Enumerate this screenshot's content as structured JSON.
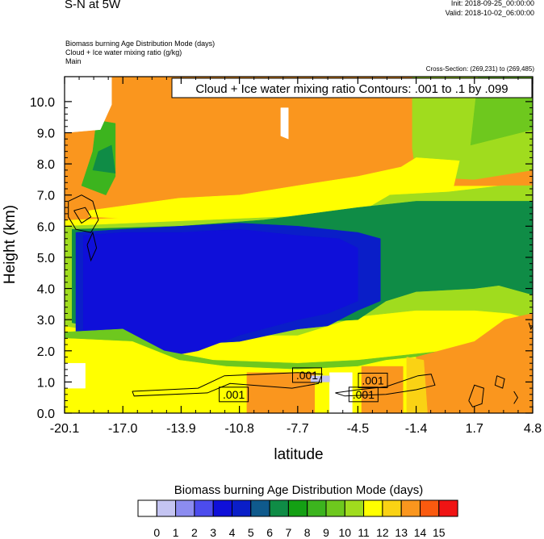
{
  "header": {
    "title": "S-N at 5W",
    "init": "Init: 2018-09-25_00:00:00",
    "valid": "Valid: 2018-10-02_06:00:00",
    "fields": [
      "Biomass burning Age Distribution Mode   (days)",
      "Cloud + Ice water mixing ratio   (g/kg)",
      "Main"
    ],
    "cross_section": "Cross-Section: (269,231) to (269,485)"
  },
  "chart_data": {
    "type": "heatmap",
    "xlabel": "latitude",
    "ylabel": "Height (km)",
    "x_ticks": [
      -20.1,
      -17.0,
      -13.9,
      -10.8,
      -7.7,
      -4.5,
      -1.4,
      1.7,
      4.8
    ],
    "x_tick_labels": [
      "-20.1",
      "-17.0",
      "-13.9",
      "-10.8",
      "-7.7",
      "-4.5",
      "-1.4",
      "1.7",
      "4.8"
    ],
    "xlim": [
      -20.1,
      4.8
    ],
    "y_ticks": [
      0,
      1,
      2,
      3,
      4,
      5,
      6,
      7,
      8,
      9,
      10
    ],
    "y_tick_labels": [
      "0.0",
      "1.0",
      "2.0",
      "3.0",
      "4.0",
      "5.0",
      "6.0",
      "7.0",
      "8.0",
      "9.0",
      "10.0"
    ],
    "ylim": [
      0,
      10.8
    ],
    "contour_info": "Cloud + Ice water mixing ratio Contours: .001 to .1 by .099",
    "contour_labels": [
      {
        "text": ".001",
        "lat": -7.2,
        "km": 1.22
      },
      {
        "text": ".001",
        "lat": -11.1,
        "km": 0.6
      },
      {
        "text": ".001",
        "lat": -4.2,
        "km": 0.6
      },
      {
        "text": ".001",
        "lat": -3.7,
        "km": 1.05
      }
    ],
    "colorbar": {
      "title": "Biomass burning Age Distribution Mode  (days)",
      "labels": [
        "0",
        "1",
        "2",
        "3",
        "4",
        "5",
        "6",
        "7",
        "8",
        "9",
        "10",
        "11",
        "12",
        "13",
        "14",
        "15"
      ],
      "colors": [
        "#ffffff",
        "#c4c4f2",
        "#8c8cf0",
        "#4c4ced",
        "#0f0fd9",
        "#0a1ec8",
        "#0f5a8c",
        "#0f8c46",
        "#14a014",
        "#3cb41e",
        "#6ec81e",
        "#a0dc1e",
        "#ffff00",
        "#fad214",
        "#fa961e",
        "#fa5a0f",
        "#f01414"
      ]
    },
    "regions": [
      {
        "level": 14,
        "poly": [
          [
            -20.1,
            6.2
          ],
          [
            -4.5,
            6.6
          ],
          [
            -1.4,
            6.9
          ],
          [
            0.5,
            7.3
          ],
          [
            4.8,
            7.3
          ],
          [
            4.8,
            10.8
          ],
          [
            -20.1,
            10.8
          ]
        ]
      },
      {
        "level": 11,
        "poly": [
          [
            -1.4,
            7.6
          ],
          [
            1.7,
            7.5
          ],
          [
            4.8,
            7.8
          ],
          [
            4.8,
            10.8
          ],
          [
            -1.6,
            10.8
          ],
          [
            -1.6,
            9.2
          ],
          [
            -1.6,
            8.5
          ]
        ]
      },
      {
        "level": 10,
        "poly": [
          [
            1.5,
            8.6
          ],
          [
            4.8,
            9.1
          ],
          [
            4.8,
            10.8
          ],
          [
            1.9,
            10.8
          ]
        ]
      },
      {
        "level": 12,
        "poly": [
          [
            -18.8,
            6.5
          ],
          [
            -14.0,
            6.9
          ],
          [
            -10.8,
            7.0
          ],
          [
            -7.7,
            7.3
          ],
          [
            -4.5,
            7.6
          ],
          [
            -2.2,
            7.9
          ],
          [
            -1.4,
            8.2
          ],
          [
            0.9,
            8.1
          ],
          [
            0.6,
            7.3
          ],
          [
            -1.4,
            6.9
          ],
          [
            -4.5,
            6.6
          ],
          [
            -7.7,
            6.3
          ],
          [
            -13.9,
            6.2
          ],
          [
            -18.8,
            6.3
          ]
        ]
      },
      {
        "level": 9,
        "poly": [
          [
            -19.2,
            7.3
          ],
          [
            -17.9,
            7.0
          ],
          [
            -17.4,
            7.6
          ],
          [
            -17.4,
            9.3
          ],
          [
            -18.4,
            9.4
          ],
          [
            -18.6,
            8.4
          ]
        ]
      },
      {
        "level": 7,
        "poly": [
          [
            -18.6,
            7.8
          ],
          [
            -17.4,
            7.7
          ],
          [
            -17.6,
            8.6
          ],
          [
            -18.3,
            8.4
          ]
        ]
      },
      {
        "level": 11,
        "poly": [
          [
            -20.1,
            6.0
          ],
          [
            -4.5,
            6.4
          ],
          [
            -2.8,
            7.0
          ],
          [
            0.3,
            7.1
          ],
          [
            3.2,
            7.3
          ],
          [
            4.8,
            7.3
          ],
          [
            4.8,
            3.0
          ],
          [
            3.6,
            3.2
          ],
          [
            1.7,
            3.3
          ],
          [
            -1.4,
            3.3
          ],
          [
            -4.5,
            3.1
          ],
          [
            -7.7,
            2.5
          ],
          [
            -10.8,
            2.5
          ],
          [
            -13.9,
            2.4
          ],
          [
            -17.0,
            2.5
          ],
          [
            -20.1,
            2.8
          ]
        ]
      },
      {
        "level": 7,
        "poly": [
          [
            -19.7,
            5.9
          ],
          [
            -13.9,
            6.0
          ],
          [
            -9.5,
            6.2
          ],
          [
            -4.5,
            6.6
          ],
          [
            -1.4,
            6.8
          ],
          [
            1.7,
            6.8
          ],
          [
            4.8,
            6.8
          ],
          [
            4.8,
            3.8
          ],
          [
            3.0,
            4.1
          ],
          [
            1.7,
            4.0
          ],
          [
            -1.4,
            3.9
          ],
          [
            -3.0,
            3.6
          ],
          [
            -4.5,
            3.0
          ],
          [
            -7.7,
            2.9
          ],
          [
            -10.8,
            2.6
          ],
          [
            -13.9,
            2.6
          ],
          [
            -17.0,
            2.6
          ],
          [
            -19.7,
            2.9
          ]
        ]
      },
      {
        "level": 5,
        "poly": [
          [
            -19.5,
            5.8
          ],
          [
            -17.0,
            5.9
          ],
          [
            -13.9,
            6.0
          ],
          [
            -10.8,
            6.1
          ],
          [
            -7.7,
            6.0
          ],
          [
            -4.5,
            5.8
          ],
          [
            -3.3,
            5.6
          ],
          [
            -3.3,
            3.6
          ],
          [
            -4.5,
            3.3
          ],
          [
            -6.1,
            2.8
          ],
          [
            -7.7,
            2.7
          ],
          [
            -10.8,
            2.3
          ],
          [
            -13.9,
            2.2
          ],
          [
            -17.0,
            2.4
          ],
          [
            -19.5,
            2.6
          ]
        ]
      },
      {
        "level": 4,
        "poly": [
          [
            -19.1,
            5.7
          ],
          [
            -17.0,
            5.8
          ],
          [
            -13.9,
            5.8
          ],
          [
            -10.8,
            5.9
          ],
          [
            -7.7,
            5.7
          ],
          [
            -5.5,
            5.6
          ],
          [
            -4.5,
            5.3
          ],
          [
            -4.5,
            3.6
          ],
          [
            -6.1,
            3.2
          ],
          [
            -7.7,
            3.0
          ],
          [
            -10.8,
            2.5
          ],
          [
            -13.0,
            2.0
          ],
          [
            -14.8,
            1.8
          ],
          [
            -17.0,
            2.4
          ],
          [
            -19.1,
            2.6
          ]
        ]
      },
      {
        "level": 10,
        "poly": [
          [
            -20.1,
            2.6
          ],
          [
            -17.0,
            2.7
          ],
          [
            -14.8,
            2.0
          ],
          [
            -12.2,
            1.7
          ],
          [
            -7.7,
            1.6
          ],
          [
            -4.5,
            1.7
          ],
          [
            -1.4,
            1.9
          ],
          [
            1.7,
            2.1
          ],
          [
            4.8,
            2.2
          ],
          [
            4.8,
            0
          ],
          [
            -20.1,
            0
          ]
        ]
      },
      {
        "level": 12,
        "poly": [
          [
            -20.1,
            2.4
          ],
          [
            -16.5,
            2.3
          ],
          [
            -14.0,
            1.7
          ],
          [
            -11.5,
            1.5
          ],
          [
            -7.7,
            1.4
          ],
          [
            -4.5,
            1.5
          ],
          [
            -3.0,
            1.7
          ],
          [
            -1.4,
            1.8
          ],
          [
            1.7,
            1.9
          ],
          [
            4.8,
            2.0
          ],
          [
            4.8,
            0
          ],
          [
            -20.1,
            0
          ]
        ]
      },
      {
        "level": 14,
        "poly": [
          [
            -1.4,
            1.8
          ],
          [
            1.7,
            2.3
          ],
          [
            3.3,
            3.0
          ],
          [
            4.8,
            3.2
          ],
          [
            4.8,
            0
          ],
          [
            -1.4,
            0
          ]
        ]
      },
      {
        "level": 13,
        "poly": [
          [
            -1.9,
            1.8
          ],
          [
            -1.0,
            1.7
          ],
          [
            -0.8,
            0
          ],
          [
            -1.9,
            0
          ]
        ]
      },
      {
        "level": 14,
        "poly": [
          [
            -10.4,
            0
          ],
          [
            -10.4,
            1.3
          ],
          [
            -6.8,
            1.3
          ],
          [
            -6.8,
            0
          ]
        ]
      },
      {
        "level": 14,
        "poly": [
          [
            -4.3,
            0
          ],
          [
            -4.3,
            1.5
          ],
          [
            -2.1,
            1.5
          ],
          [
            -2.1,
            0
          ]
        ]
      },
      {
        "level": 0,
        "poly": [
          [
            -6.0,
            0
          ],
          [
            -6.0,
            1.3
          ],
          [
            -4.8,
            1.3
          ],
          [
            -4.8,
            0
          ]
        ]
      },
      {
        "level": 0,
        "poly": [
          [
            -20.1,
            9.0
          ],
          [
            -18.2,
            9.1
          ],
          [
            -17.6,
            9.9
          ],
          [
            -17.6,
            10.8
          ],
          [
            -20.1,
            10.8
          ]
        ]
      },
      {
        "level": 0,
        "poly": [
          [
            -8.6,
            8.9
          ],
          [
            -8.2,
            8.8
          ],
          [
            -8.2,
            9.8
          ],
          [
            -8.6,
            9.8
          ]
        ]
      },
      {
        "level": 0,
        "poly": [
          [
            -20.1,
            1.6
          ],
          [
            -19.0,
            1.6
          ],
          [
            -19.0,
            0.8
          ],
          [
            -20.1,
            0.8
          ]
        ]
      },
      {
        "level": 1,
        "poly": [
          [
            -7.0,
            1.2
          ],
          [
            -6.0,
            1.2
          ],
          [
            -6.0,
            1.0
          ],
          [
            -7.0,
            1.0
          ]
        ]
      }
    ],
    "contours": [
      [
        [
          -19.9,
          6.8
        ],
        [
          -19.2,
          7.0
        ],
        [
          -18.6,
          6.8
        ],
        [
          -18.3,
          6.2
        ],
        [
          -18.7,
          5.8
        ],
        [
          -19.5,
          5.9
        ],
        [
          -19.9,
          6.3
        ],
        [
          -19.9,
          6.8
        ]
      ],
      [
        [
          -19.6,
          6.5
        ],
        [
          -19.0,
          6.6
        ],
        [
          -18.7,
          6.3
        ],
        [
          -19.2,
          6.1
        ],
        [
          -19.6,
          6.5
        ]
      ],
      [
        [
          -16.5,
          0.7
        ],
        [
          -13.0,
          0.8
        ],
        [
          -11.6,
          1.2
        ],
        [
          -7.7,
          1.3
        ],
        [
          -6.4,
          1.25
        ],
        [
          -6.6,
          0.95
        ],
        [
          -8.0,
          0.8
        ],
        [
          -11.3,
          0.95
        ],
        [
          -12.5,
          0.65
        ],
        [
          -16.4,
          0.55
        ],
        [
          -16.5,
          0.7
        ]
      ],
      [
        [
          -5.7,
          0.65
        ],
        [
          -4.5,
          0.75
        ],
        [
          -3.0,
          0.85
        ],
        [
          -1.3,
          1.2
        ],
        [
          -0.6,
          1.25
        ],
        [
          -0.4,
          0.9
        ],
        [
          -1.4,
          0.75
        ],
        [
          -3.0,
          0.6
        ],
        [
          -5.2,
          0.55
        ],
        [
          -5.7,
          0.65
        ]
      ],
      [
        [
          1.4,
          0.4
        ],
        [
          1.7,
          0.9
        ],
        [
          2.2,
          0.8
        ],
        [
          2.1,
          0.3
        ],
        [
          1.6,
          0.2
        ],
        [
          1.4,
          0.4
        ]
      ],
      [
        [
          2.9,
          1.2
        ],
        [
          3.3,
          1.1
        ],
        [
          3.2,
          0.8
        ],
        [
          2.8,
          0.9
        ],
        [
          2.9,
          1.2
        ]
      ],
      [
        [
          -18.9,
          5.4
        ],
        [
          -18.6,
          5.8
        ],
        [
          -18.4,
          5.3
        ],
        [
          -18.7,
          4.9
        ],
        [
          -18.9,
          5.4
        ]
      ],
      [
        [
          4.6,
          2.9
        ],
        [
          4.7,
          2.7
        ],
        [
          4.8,
          2.8
        ]
      ],
      [
        [
          3.8,
          0.7
        ],
        [
          4.0,
          0.5
        ],
        [
          3.8,
          0.3
        ]
      ]
    ]
  }
}
